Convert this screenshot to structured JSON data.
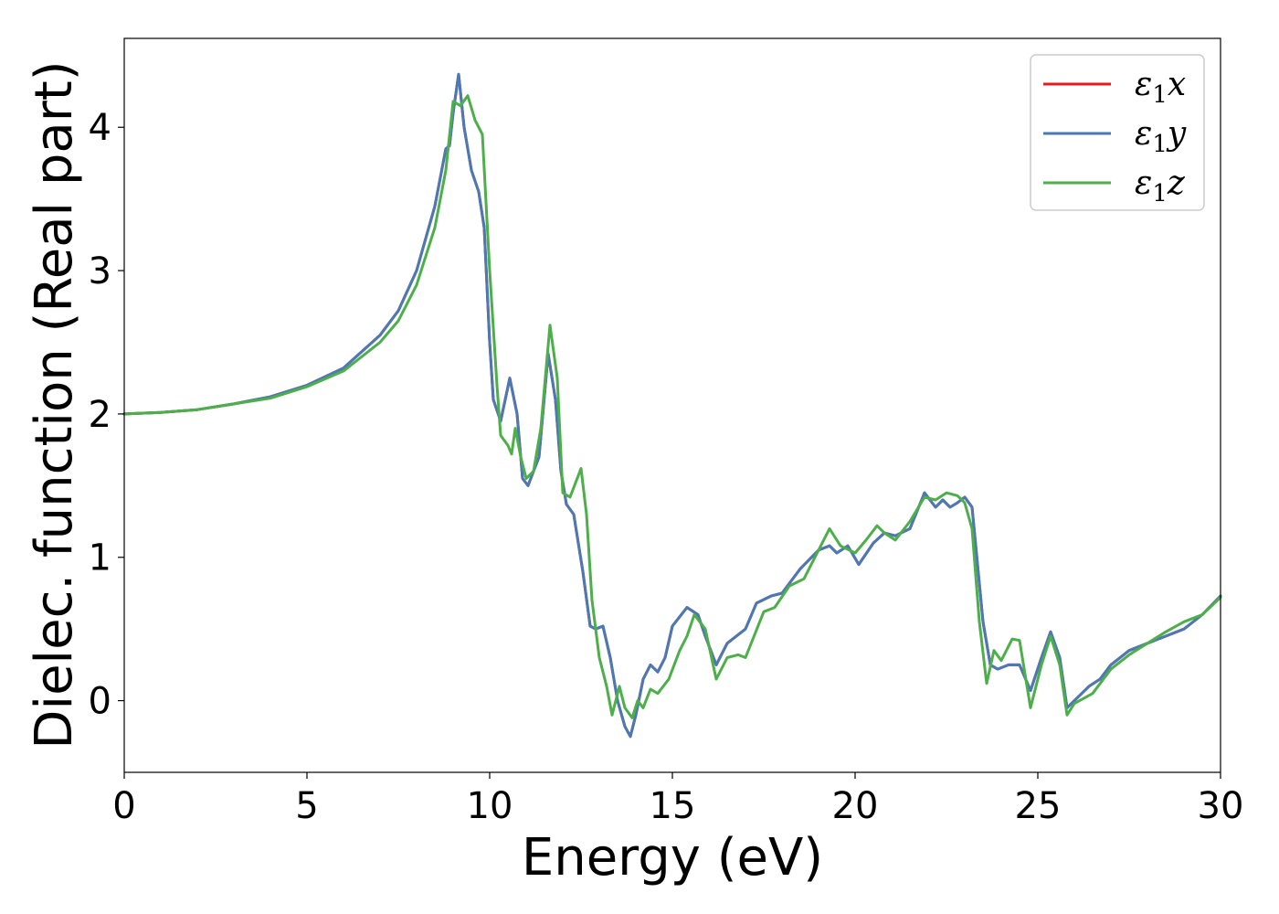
{
  "chart_data": {
    "type": "line",
    "title": "",
    "xlabel": "Energy (eV)",
    "ylabel": "Dielec. function (Real part)",
    "xlim": [
      0,
      30
    ],
    "ylim": [
      -0.5,
      4.62
    ],
    "xticks": [
      0,
      5,
      10,
      15,
      20,
      25,
      30
    ],
    "yticks": [
      0,
      1,
      2,
      3,
      4
    ],
    "grid": false,
    "legend_position": "top-right",
    "series": [
      {
        "name": "ε1x",
        "legend": {
          "base": "ε",
          "sub": "1",
          "axis": "x"
        },
        "color": "#e41a1c",
        "points": [
          [
            0,
            2.0
          ],
          [
            1,
            2.01
          ],
          [
            2,
            2.03
          ],
          [
            3,
            2.07
          ],
          [
            4,
            2.12
          ],
          [
            5,
            2.2
          ],
          [
            6,
            2.32
          ],
          [
            7,
            2.55
          ],
          [
            7.5,
            2.72
          ],
          [
            8,
            3.0
          ],
          [
            8.5,
            3.45
          ],
          [
            8.8,
            3.85
          ],
          [
            8.9,
            3.87
          ],
          [
            9.0,
            4.1
          ],
          [
            9.15,
            4.37
          ],
          [
            9.3,
            4.0
          ],
          [
            9.5,
            3.7
          ],
          [
            9.7,
            3.55
          ],
          [
            9.85,
            3.3
          ],
          [
            10.0,
            2.5
          ],
          [
            10.1,
            2.1
          ],
          [
            10.3,
            1.95
          ],
          [
            10.55,
            2.25
          ],
          [
            10.75,
            2.0
          ],
          [
            10.9,
            1.55
          ],
          [
            11.05,
            1.5
          ],
          [
            11.2,
            1.6
          ],
          [
            11.35,
            1.7
          ],
          [
            11.6,
            2.42
          ],
          [
            11.8,
            2.1
          ],
          [
            11.95,
            1.6
          ],
          [
            12.1,
            1.37
          ],
          [
            12.3,
            1.3
          ],
          [
            12.55,
            0.9
          ],
          [
            12.75,
            0.52
          ],
          [
            12.9,
            0.5
          ],
          [
            13.1,
            0.52
          ],
          [
            13.3,
            0.3
          ],
          [
            13.5,
            0.0
          ],
          [
            13.7,
            -0.18
          ],
          [
            13.85,
            -0.25
          ],
          [
            14.0,
            -0.1
          ],
          [
            14.2,
            0.15
          ],
          [
            14.4,
            0.25
          ],
          [
            14.6,
            0.2
          ],
          [
            14.8,
            0.3
          ],
          [
            15.0,
            0.52
          ],
          [
            15.4,
            0.65
          ],
          [
            15.7,
            0.6
          ],
          [
            15.9,
            0.45
          ],
          [
            16.2,
            0.25
          ],
          [
            16.5,
            0.4
          ],
          [
            17.0,
            0.5
          ],
          [
            17.3,
            0.68
          ],
          [
            17.7,
            0.73
          ],
          [
            18.0,
            0.75
          ],
          [
            18.5,
            0.92
          ],
          [
            19.0,
            1.05
          ],
          [
            19.3,
            1.08
          ],
          [
            19.5,
            1.03
          ],
          [
            19.8,
            1.08
          ],
          [
            20.1,
            0.95
          ],
          [
            20.5,
            1.1
          ],
          [
            20.8,
            1.17
          ],
          [
            21.1,
            1.15
          ],
          [
            21.5,
            1.2
          ],
          [
            21.9,
            1.45
          ],
          [
            22.2,
            1.35
          ],
          [
            22.4,
            1.4
          ],
          [
            22.6,
            1.35
          ],
          [
            22.8,
            1.38
          ],
          [
            23.0,
            1.42
          ],
          [
            23.2,
            1.35
          ],
          [
            23.5,
            0.55
          ],
          [
            23.7,
            0.25
          ],
          [
            23.9,
            0.22
          ],
          [
            24.2,
            0.25
          ],
          [
            24.5,
            0.25
          ],
          [
            24.8,
            0.07
          ],
          [
            25.1,
            0.3
          ],
          [
            25.35,
            0.48
          ],
          [
            25.6,
            0.3
          ],
          [
            25.8,
            -0.05
          ],
          [
            26.0,
            0.0
          ],
          [
            26.4,
            0.1
          ],
          [
            26.7,
            0.15
          ],
          [
            27.0,
            0.25
          ],
          [
            27.5,
            0.35
          ],
          [
            28.0,
            0.4
          ],
          [
            28.5,
            0.45
          ],
          [
            29.0,
            0.5
          ],
          [
            29.5,
            0.6
          ],
          [
            30.0,
            0.73
          ]
        ]
      },
      {
        "name": "ε1y",
        "legend": {
          "base": "ε",
          "sub": "1",
          "axis": "y"
        },
        "color": "#4a7ab5",
        "points": [
          [
            0,
            2.0
          ],
          [
            1,
            2.01
          ],
          [
            2,
            2.03
          ],
          [
            3,
            2.07
          ],
          [
            4,
            2.12
          ],
          [
            5,
            2.2
          ],
          [
            6,
            2.32
          ],
          [
            7,
            2.55
          ],
          [
            7.5,
            2.72
          ],
          [
            8,
            3.0
          ],
          [
            8.5,
            3.45
          ],
          [
            8.8,
            3.85
          ],
          [
            8.9,
            3.87
          ],
          [
            9.0,
            4.1
          ],
          [
            9.15,
            4.37
          ],
          [
            9.3,
            4.0
          ],
          [
            9.5,
            3.7
          ],
          [
            9.7,
            3.55
          ],
          [
            9.85,
            3.3
          ],
          [
            10.0,
            2.5
          ],
          [
            10.1,
            2.1
          ],
          [
            10.3,
            1.95
          ],
          [
            10.55,
            2.25
          ],
          [
            10.75,
            2.0
          ],
          [
            10.9,
            1.55
          ],
          [
            11.05,
            1.5
          ],
          [
            11.2,
            1.6
          ],
          [
            11.35,
            1.7
          ],
          [
            11.6,
            2.42
          ],
          [
            11.8,
            2.1
          ],
          [
            11.95,
            1.6
          ],
          [
            12.1,
            1.37
          ],
          [
            12.3,
            1.3
          ],
          [
            12.55,
            0.9
          ],
          [
            12.75,
            0.52
          ],
          [
            12.9,
            0.5
          ],
          [
            13.1,
            0.52
          ],
          [
            13.3,
            0.3
          ],
          [
            13.5,
            0.0
          ],
          [
            13.7,
            -0.18
          ],
          [
            13.85,
            -0.25
          ],
          [
            14.0,
            -0.1
          ],
          [
            14.2,
            0.15
          ],
          [
            14.4,
            0.25
          ],
          [
            14.6,
            0.2
          ],
          [
            14.8,
            0.3
          ],
          [
            15.0,
            0.52
          ],
          [
            15.4,
            0.65
          ],
          [
            15.7,
            0.6
          ],
          [
            15.9,
            0.45
          ],
          [
            16.2,
            0.25
          ],
          [
            16.5,
            0.4
          ],
          [
            17.0,
            0.5
          ],
          [
            17.3,
            0.68
          ],
          [
            17.7,
            0.73
          ],
          [
            18.0,
            0.75
          ],
          [
            18.5,
            0.92
          ],
          [
            19.0,
            1.05
          ],
          [
            19.3,
            1.08
          ],
          [
            19.5,
            1.03
          ],
          [
            19.8,
            1.08
          ],
          [
            20.1,
            0.95
          ],
          [
            20.5,
            1.1
          ],
          [
            20.8,
            1.17
          ],
          [
            21.1,
            1.15
          ],
          [
            21.5,
            1.2
          ],
          [
            21.9,
            1.45
          ],
          [
            22.2,
            1.35
          ],
          [
            22.4,
            1.4
          ],
          [
            22.6,
            1.35
          ],
          [
            22.8,
            1.38
          ],
          [
            23.0,
            1.42
          ],
          [
            23.2,
            1.35
          ],
          [
            23.5,
            0.55
          ],
          [
            23.7,
            0.25
          ],
          [
            23.9,
            0.22
          ],
          [
            24.2,
            0.25
          ],
          [
            24.5,
            0.25
          ],
          [
            24.8,
            0.07
          ],
          [
            25.1,
            0.3
          ],
          [
            25.35,
            0.48
          ],
          [
            25.6,
            0.3
          ],
          [
            25.8,
            -0.05
          ],
          [
            26.0,
            0.0
          ],
          [
            26.4,
            0.1
          ],
          [
            26.7,
            0.15
          ],
          [
            27.0,
            0.25
          ],
          [
            27.5,
            0.35
          ],
          [
            28.0,
            0.4
          ],
          [
            28.5,
            0.45
          ],
          [
            29.0,
            0.5
          ],
          [
            29.5,
            0.6
          ],
          [
            30.0,
            0.73
          ]
        ]
      },
      {
        "name": "ε1z",
        "legend": {
          "base": "ε",
          "sub": "1",
          "axis": "z"
        },
        "color": "#4daf4a",
        "points": [
          [
            0,
            2.0
          ],
          [
            1,
            2.01
          ],
          [
            2,
            2.03
          ],
          [
            3,
            2.07
          ],
          [
            4,
            2.11
          ],
          [
            5,
            2.19
          ],
          [
            6,
            2.3
          ],
          [
            7,
            2.5
          ],
          [
            7.5,
            2.65
          ],
          [
            8,
            2.9
          ],
          [
            8.5,
            3.3
          ],
          [
            8.8,
            3.7
          ],
          [
            9.0,
            4.18
          ],
          [
            9.2,
            4.15
          ],
          [
            9.4,
            4.22
          ],
          [
            9.6,
            4.05
          ],
          [
            9.8,
            3.95
          ],
          [
            10.0,
            3.0
          ],
          [
            10.2,
            2.2
          ],
          [
            10.3,
            1.85
          ],
          [
            10.5,
            1.78
          ],
          [
            10.6,
            1.72
          ],
          [
            10.7,
            1.9
          ],
          [
            10.85,
            1.7
          ],
          [
            11.0,
            1.55
          ],
          [
            11.2,
            1.6
          ],
          [
            11.4,
            1.9
          ],
          [
            11.65,
            2.62
          ],
          [
            11.85,
            2.25
          ],
          [
            12.0,
            1.45
          ],
          [
            12.2,
            1.42
          ],
          [
            12.5,
            1.62
          ],
          [
            12.65,
            1.3
          ],
          [
            12.8,
            0.7
          ],
          [
            13.0,
            0.3
          ],
          [
            13.2,
            0.1
          ],
          [
            13.35,
            -0.1
          ],
          [
            13.55,
            0.1
          ],
          [
            13.7,
            -0.05
          ],
          [
            13.9,
            -0.12
          ],
          [
            14.05,
            0.0
          ],
          [
            14.2,
            -0.05
          ],
          [
            14.4,
            0.08
          ],
          [
            14.6,
            0.05
          ],
          [
            14.9,
            0.15
          ],
          [
            15.2,
            0.35
          ],
          [
            15.4,
            0.45
          ],
          [
            15.6,
            0.6
          ],
          [
            15.9,
            0.5
          ],
          [
            16.2,
            0.15
          ],
          [
            16.5,
            0.3
          ],
          [
            16.8,
            0.32
          ],
          [
            17.0,
            0.3
          ],
          [
            17.5,
            0.62
          ],
          [
            17.8,
            0.65
          ],
          [
            18.2,
            0.8
          ],
          [
            18.6,
            0.85
          ],
          [
            19.0,
            1.05
          ],
          [
            19.3,
            1.2
          ],
          [
            19.6,
            1.08
          ],
          [
            20.0,
            1.03
          ],
          [
            20.3,
            1.12
          ],
          [
            20.6,
            1.22
          ],
          [
            20.8,
            1.17
          ],
          [
            21.1,
            1.12
          ],
          [
            21.5,
            1.25
          ],
          [
            21.9,
            1.42
          ],
          [
            22.2,
            1.4
          ],
          [
            22.5,
            1.45
          ],
          [
            22.8,
            1.43
          ],
          [
            23.0,
            1.38
          ],
          [
            23.2,
            1.2
          ],
          [
            23.4,
            0.55
          ],
          [
            23.6,
            0.12
          ],
          [
            23.8,
            0.35
          ],
          [
            24.0,
            0.28
          ],
          [
            24.3,
            0.43
          ],
          [
            24.5,
            0.42
          ],
          [
            24.8,
            -0.05
          ],
          [
            25.1,
            0.25
          ],
          [
            25.35,
            0.45
          ],
          [
            25.6,
            0.25
          ],
          [
            25.8,
            -0.1
          ],
          [
            26.0,
            -0.02
          ],
          [
            26.5,
            0.05
          ],
          [
            27.0,
            0.22
          ],
          [
            27.5,
            0.32
          ],
          [
            28.0,
            0.4
          ],
          [
            28.5,
            0.48
          ],
          [
            29.0,
            0.55
          ],
          [
            29.5,
            0.6
          ],
          [
            30.0,
            0.72
          ]
        ]
      }
    ]
  }
}
